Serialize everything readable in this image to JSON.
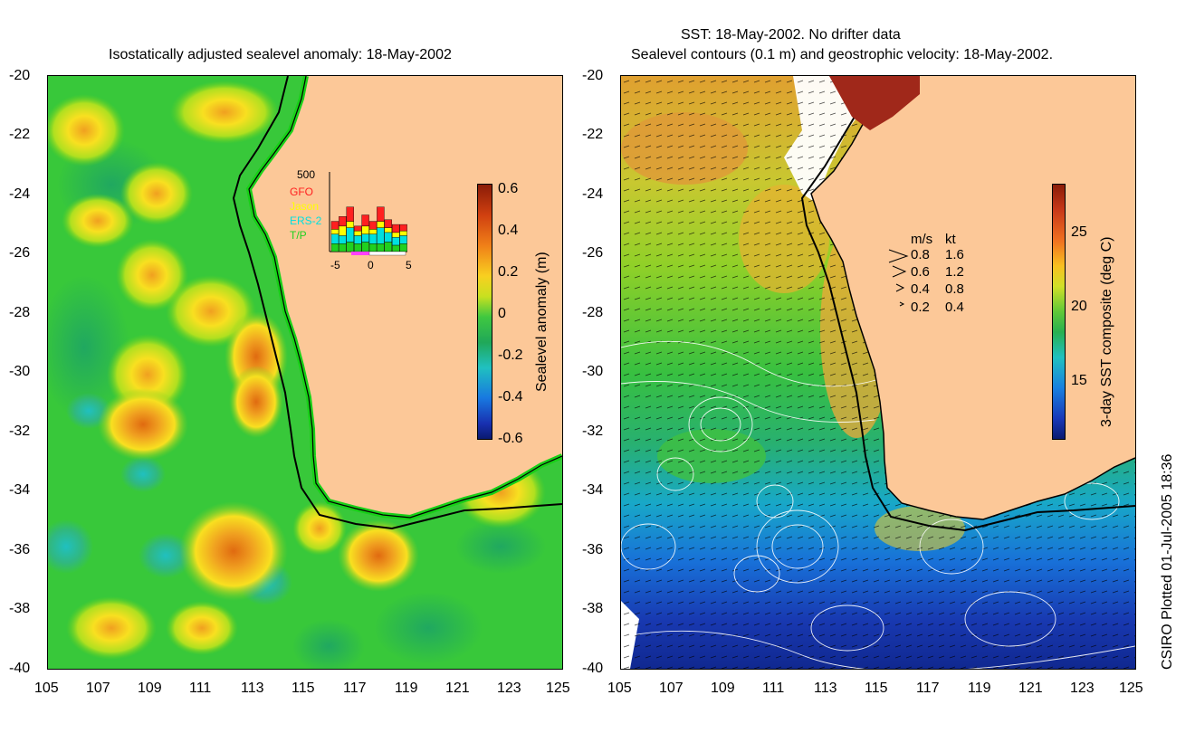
{
  "left": {
    "title": "Isostatically adjusted sealevel anomaly: 18-May-2002",
    "y_ticks": [
      "-20",
      "-22",
      "-24",
      "-26",
      "-28",
      "-30",
      "-32",
      "-34",
      "-36",
      "-38",
      "-40"
    ],
    "x_ticks": [
      "105",
      "107",
      "109",
      "111",
      "113",
      "115",
      "117",
      "119",
      "121",
      "123",
      "125"
    ],
    "colorbar": {
      "label": "Sealevel anomaly (m)",
      "ticks": [
        "0.6",
        "0.4",
        "0.2",
        "0",
        "-0.2",
        "-0.4",
        "-0.6"
      ]
    },
    "inset": {
      "count_label": "500",
      "legend": [
        "GFO",
        "Jason",
        "ERS-2",
        "T/P"
      ],
      "legend_colors": [
        "#ff2020",
        "#ffff00",
        "#00e0e0",
        "#20d020"
      ],
      "x_ticks": [
        "-5",
        "0",
        "5"
      ]
    }
  },
  "right": {
    "title_line1": "SST: 18-May-2002. No drifter data",
    "title_line2": "Sealevel contours (0.1 m) and geostrophic velocity: 18-May-2002.",
    "y_ticks": [
      "-20",
      "-22",
      "-24",
      "-26",
      "-28",
      "-30",
      "-32",
      "-34",
      "-36",
      "-38",
      "-40"
    ],
    "x_ticks": [
      "105",
      "107",
      "109",
      "111",
      "113",
      "115",
      "117",
      "119",
      "121",
      "123",
      "125"
    ],
    "colorbar": {
      "label": "3-day SST composite (deg C)",
      "ticks": [
        "25",
        "20",
        "15"
      ]
    },
    "velocity_legend": {
      "header_ms": "m/s",
      "header_kt": "kt",
      "rows": [
        {
          "ms": "0.8",
          "kt": "1.6"
        },
        {
          "ms": "0.6",
          "kt": "1.2"
        },
        {
          "ms": "0.4",
          "kt": "0.8"
        },
        {
          "ms": "0.2",
          "kt": "0.4"
        }
      ]
    }
  },
  "credit": "CSIRO Plotted 01-Jul-2005 18:36",
  "colors": {
    "land": "#fcc898",
    "ocean_green": "#30c830"
  }
}
